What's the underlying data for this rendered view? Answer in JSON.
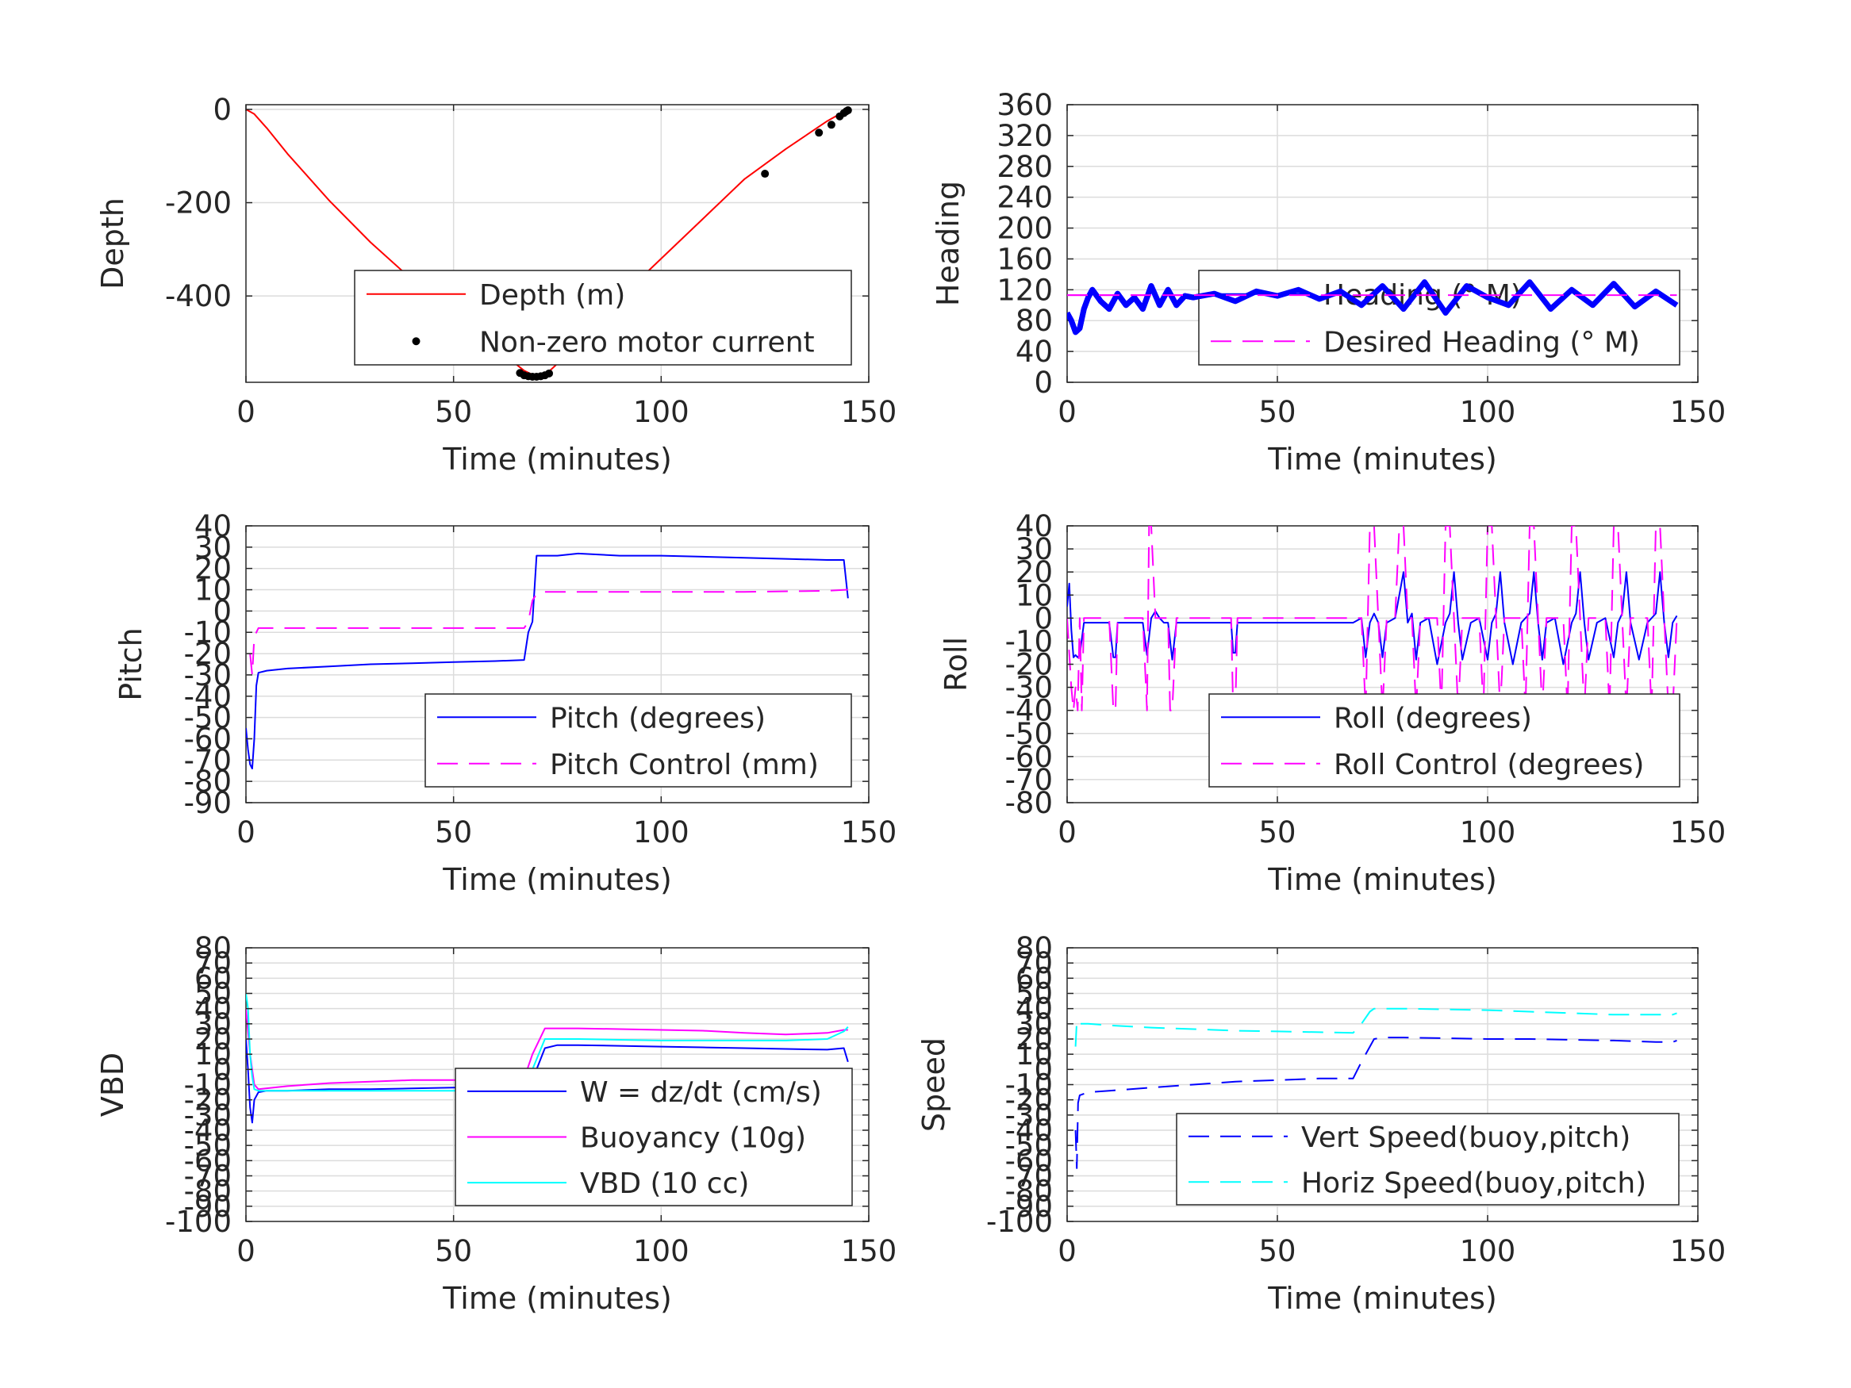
{
  "chart_data": [
    {
      "id": "depth",
      "type": "line",
      "xlabel": "Time (minutes)",
      "ylabel": "Depth",
      "xlim": [
        0,
        150
      ],
      "ylim": [
        -585,
        10
      ],
      "xticks": [
        0,
        50,
        100,
        150
      ],
      "yticks": [
        0,
        -200,
        -400
      ],
      "legend": "lower-right",
      "grid": true,
      "series": [
        {
          "name": "Depth (m)",
          "color": "#ff0000",
          "style": "solid",
          "width": 2,
          "x": [
            0,
            2,
            5,
            10,
            20,
            30,
            40,
            50,
            60,
            67,
            70,
            72,
            75,
            80,
            90,
            100,
            110,
            120,
            130,
            140,
            145
          ],
          "y": [
            0,
            -10,
            -40,
            -95,
            -195,
            -285,
            -365,
            -440,
            -510,
            -560,
            -573,
            -570,
            -545,
            -500,
            -405,
            -320,
            -235,
            -150,
            -85,
            -25,
            0
          ]
        },
        {
          "name": "Non-zero motor current",
          "color": "#000000",
          "style": "dots",
          "x": [
            66,
            67,
            68,
            69,
            70,
            71,
            72,
            73,
            125,
            138,
            141,
            143,
            144,
            144.6,
            145
          ],
          "y": [
            -565,
            -570,
            -572,
            -573,
            -573,
            -572,
            -570,
            -566,
            -138,
            -50,
            -33,
            -15,
            -8,
            -4,
            -2
          ]
        }
      ]
    },
    {
      "id": "heading",
      "type": "line",
      "xlabel": "Time (minutes)",
      "ylabel": "Heading",
      "xlim": [
        0,
        150
      ],
      "ylim": [
        0,
        360
      ],
      "xticks": [
        0,
        50,
        100,
        150
      ],
      "yticks": [
        0,
        40,
        80,
        120,
        160,
        200,
        240,
        280,
        320,
        360
      ],
      "legend": "lower-right",
      "grid": true,
      "series": [
        {
          "name": "Heading (° M)",
          "color": "#0000ff",
          "style": "thick",
          "width": 7,
          "x": [
            0,
            1,
            2,
            3,
            4,
            5,
            6,
            8,
            10,
            12,
            14,
            16,
            18,
            20,
            22,
            24,
            26,
            28,
            30,
            35,
            40,
            45,
            50,
            55,
            60,
            65,
            70,
            75,
            80,
            85,
            90,
            95,
            100,
            105,
            110,
            115,
            120,
            125,
            130,
            135,
            140,
            145
          ],
          "y": [
            90,
            80,
            65,
            70,
            95,
            110,
            120,
            105,
            95,
            115,
            100,
            110,
            95,
            125,
            100,
            120,
            100,
            112,
            110,
            115,
            105,
            118,
            112,
            120,
            108,
            118,
            100,
            125,
            95,
            130,
            90,
            125,
            110,
            100,
            130,
            95,
            120,
            100,
            128,
            98,
            118,
            100
          ]
        },
        {
          "name": "Desired Heading (° M)",
          "color": "#ff00ff",
          "style": "dashed",
          "width": 2,
          "x": [
            0,
            145
          ],
          "y": [
            113,
            113
          ]
        }
      ]
    },
    {
      "id": "pitch",
      "type": "line",
      "xlabel": "Time (minutes)",
      "ylabel": "Pitch",
      "xlim": [
        0,
        150
      ],
      "ylim": [
        -90,
        40
      ],
      "xticks": [
        0,
        50,
        100,
        150
      ],
      "yticks": [
        40,
        30,
        20,
        10,
        0,
        -10,
        -20,
        -30,
        -40,
        -50,
        -60,
        -70,
        -80,
        -90
      ],
      "legend": "lower-right",
      "grid": true,
      "series": [
        {
          "name": "Pitch (degrees)",
          "color": "#0000ff",
          "style": "solid",
          "width": 2,
          "x": [
            0,
            0.5,
            1,
            1.5,
            2,
            2.5,
            3,
            5,
            10,
            20,
            30,
            40,
            50,
            60,
            67,
            68,
            69,
            70,
            71,
            75,
            80,
            90,
            100,
            110,
            120,
            130,
            140,
            144,
            145
          ],
          "y": [
            -55,
            -65,
            -72,
            -74,
            -60,
            -35,
            -29,
            -28,
            -27,
            -26,
            -25,
            -24.5,
            -24,
            -23.5,
            -23,
            -10,
            -5,
            26,
            26,
            26,
            27,
            26,
            26,
            25.5,
            25,
            24.5,
            24,
            24,
            6
          ]
        },
        {
          "name": "Pitch Control (mm)",
          "color": "#ff00ff",
          "style": "dashed",
          "width": 2,
          "x": [
            1,
            1.5,
            2,
            3,
            10,
            30,
            50,
            67,
            68,
            69,
            70,
            71,
            80,
            100,
            120,
            140,
            145
          ],
          "y": [
            -20,
            -30,
            -12,
            -8,
            -8,
            -8,
            -8,
            -8,
            -5,
            5,
            8,
            9,
            9,
            9,
            9,
            9.5,
            10
          ]
        }
      ]
    },
    {
      "id": "roll",
      "type": "line",
      "xlabel": "",
      "ylabel": "Roll",
      "xlim": [
        0,
        150
      ],
      "ylim": [
        -80,
        40
      ],
      "xticks": [
        0,
        50,
        100,
        150
      ],
      "yticks": [
        40,
        30,
        20,
        10,
        0,
        -10,
        -20,
        -30,
        -40,
        -50,
        -60,
        -70,
        -80
      ],
      "legend": "lower-right",
      "grid": true,
      "series": [
        {
          "name": "Roll (degrees)",
          "color": "#0000ff",
          "style": "solid",
          "width": 2,
          "x": [
            0,
            0.5,
            1,
            1.5,
            2,
            2.5,
            3,
            4,
            5,
            10,
            11,
            11.5,
            12,
            18,
            19,
            20,
            21,
            22,
            23,
            24,
            25,
            26,
            30,
            39,
            39.5,
            40,
            40.5,
            50,
            60,
            68,
            70,
            71,
            72,
            73,
            74,
            75,
            76,
            78,
            80,
            81,
            82,
            83,
            84,
            86,
            88,
            90,
            91,
            92,
            93,
            94,
            96,
            98,
            100,
            101,
            102,
            103,
            104,
            106,
            108,
            110,
            111,
            112,
            113,
            114,
            116,
            118,
            120,
            121,
            122,
            123,
            124,
            126,
            128,
            130,
            131,
            132,
            133,
            134,
            136,
            138,
            140,
            141,
            142,
            143,
            144,
            145
          ],
          "y": [
            5,
            15,
            -5,
            -17,
            -16,
            -17,
            -16,
            -2,
            -2,
            -2,
            -17,
            -17,
            -2,
            -2,
            -16,
            0,
            3,
            0,
            -2,
            -2,
            -18,
            -2,
            -2,
            -2,
            -15,
            -15,
            -2,
            -2,
            -2,
            -2,
            0,
            -17,
            -2,
            2,
            -2,
            -17,
            -2,
            0,
            20,
            -2,
            2,
            -18,
            -2,
            0,
            -20,
            -2,
            2,
            20,
            -2,
            -18,
            -2,
            0,
            -18,
            -2,
            2,
            20,
            -2,
            -20,
            -2,
            2,
            20,
            -2,
            -18,
            -2,
            0,
            -20,
            -2,
            2,
            20,
            -2,
            -18,
            -2,
            0,
            -17,
            -2,
            2,
            20,
            -2,
            -18,
            -2,
            2,
            20,
            -2,
            -17,
            -2,
            1
          ]
        },
        {
          "name": "Roll Control (degrees)",
          "color": "#ff00ff",
          "style": "dashed",
          "width": 2,
          "x": [
            0,
            1,
            1.5,
            2,
            2.5,
            3,
            3.5,
            4,
            5,
            10,
            11,
            11.5,
            12,
            18,
            19,
            19.5,
            20,
            21,
            22,
            24,
            24.5,
            25,
            26,
            30,
            39,
            39.5,
            40,
            40.5,
            50,
            60,
            70,
            71,
            72,
            73,
            74,
            75,
            76,
            78,
            79,
            80,
            81,
            82,
            83,
            84,
            86,
            88,
            89,
            90,
            91,
            92,
            93,
            94,
            96,
            98,
            99,
            100,
            101,
            102,
            103,
            104,
            106,
            108,
            109,
            110,
            111,
            112,
            113,
            114,
            116,
            118,
            119,
            120,
            121,
            122,
            123,
            124,
            126,
            128,
            129,
            130,
            131,
            132,
            133,
            134,
            136,
            138,
            139,
            140,
            141,
            142,
            143,
            144,
            145
          ],
          "y": [
            0,
            -30,
            -40,
            -30,
            -40,
            0,
            -40,
            0,
            0,
            0,
            -40,
            -40,
            0,
            0,
            -40,
            40,
            40,
            0,
            0,
            0,
            -40,
            -40,
            0,
            0,
            0,
            -40,
            -40,
            0,
            0,
            0,
            0,
            -40,
            40,
            40,
            0,
            -40,
            0,
            0,
            40,
            40,
            0,
            0,
            -40,
            0,
            0,
            0,
            -40,
            40,
            40,
            0,
            -40,
            0,
            0,
            0,
            -40,
            40,
            40,
            0,
            -40,
            0,
            0,
            0,
            -40,
            40,
            40,
            0,
            -40,
            0,
            0,
            0,
            -40,
            40,
            40,
            0,
            -40,
            0,
            0,
            0,
            -40,
            40,
            40,
            0,
            -40,
            0,
            0,
            0,
            -40,
            40,
            40,
            0,
            -40,
            -40,
            0
          ]
        }
      ]
    },
    {
      "id": "vbd",
      "type": "line",
      "xlabel": "Time (minutes)",
      "ylabel": "VBD",
      "xlim": [
        0,
        150
      ],
      "ylim": [
        -100,
        80
      ],
      "xticks": [
        0,
        50,
        100,
        150
      ],
      "yticks": [
        80,
        70,
        60,
        50,
        40,
        30,
        20,
        10,
        0,
        -10,
        -20,
        -30,
        -40,
        -50,
        -60,
        -70,
        -80,
        -90,
        -100
      ],
      "legend": "lower-right",
      "grid": true,
      "series": [
        {
          "name": "W = dz/dt (cm/s)",
          "color": "#0000ff",
          "style": "solid",
          "width": 2,
          "x": [
            0,
            0.5,
            1,
            1.5,
            2,
            3,
            5,
            10,
            20,
            30,
            40,
            50,
            60,
            67,
            70,
            72,
            75,
            80,
            90,
            100,
            110,
            120,
            130,
            140,
            144,
            145
          ],
          "y": [
            20,
            0,
            -25,
            -35,
            -20,
            -15,
            -14,
            -14,
            -13,
            -13,
            -12.5,
            -12,
            -12,
            -12,
            0,
            14,
            16,
            16,
            15.5,
            15,
            14.5,
            14,
            13.5,
            13,
            14,
            5
          ]
        },
        {
          "name": "Buoyancy (10g)",
          "color": "#ff00ff",
          "style": "solid",
          "width": 2,
          "x": [
            0,
            1,
            2,
            3,
            10,
            20,
            30,
            40,
            50,
            60,
            67,
            69,
            72,
            75,
            80,
            90,
            100,
            110,
            120,
            130,
            140,
            144,
            145
          ],
          "y": [
            40,
            10,
            -10,
            -13,
            -11,
            -9,
            -8,
            -7,
            -7,
            -7,
            -6,
            10,
            27,
            27,
            27,
            26.5,
            26,
            25.5,
            24,
            23,
            24,
            26,
            26
          ]
        },
        {
          "name": "VBD (10 cc)",
          "color": "#00ffff",
          "style": "solid",
          "width": 2,
          "x": [
            0,
            0.5,
            1,
            1.5,
            2,
            3,
            10,
            20,
            30,
            40,
            50,
            60,
            67,
            69,
            72,
            75,
            80,
            90,
            100,
            110,
            120,
            130,
            140,
            144,
            145
          ],
          "y": [
            50,
            40,
            10,
            -5,
            -13,
            -14,
            -14,
            -14,
            -14,
            -14,
            -14,
            -14,
            -14,
            0,
            20,
            20,
            20,
            19.5,
            19,
            19,
            19,
            19,
            20,
            25,
            28
          ]
        }
      ]
    },
    {
      "id": "speed",
      "type": "line",
      "xlabel": "Time (minutes)",
      "ylabel": "Speed",
      "xlim": [
        0,
        150
      ],
      "ylim": [
        -100,
        80
      ],
      "xticks": [
        0,
        50,
        100,
        150
      ],
      "yticks": [
        80,
        70,
        60,
        50,
        40,
        30,
        20,
        10,
        0,
        -10,
        -20,
        -30,
        -40,
        -50,
        -60,
        -70,
        -80,
        -90,
        -100
      ],
      "legend": "lower-right",
      "grid": true,
      "series": [
        {
          "name": "Vert Speed(buoy,pitch)",
          "color": "#0000ff",
          "style": "dashed",
          "width": 2,
          "x": [
            2,
            2.3,
            2.6,
            3,
            5,
            10,
            20,
            30,
            40,
            50,
            60,
            68,
            70,
            72,
            73,
            75,
            80,
            90,
            100,
            110,
            120,
            130,
            140,
            144,
            145
          ],
          "y": [
            -40,
            -65,
            -22,
            -17,
            -15,
            -14,
            -12,
            -10,
            -8,
            -7,
            -6,
            -6,
            5,
            15,
            20,
            21,
            21,
            20.5,
            20,
            20,
            19.5,
            19,
            18,
            18,
            19
          ]
        },
        {
          "name": "Horiz Speed(buoy,pitch)",
          "color": "#00ffff",
          "style": "dashed",
          "width": 2,
          "x": [
            2,
            2.3,
            2.6,
            3,
            5,
            10,
            20,
            30,
            40,
            50,
            60,
            68,
            70,
            72,
            73,
            75,
            80,
            90,
            100,
            110,
            120,
            130,
            140,
            144,
            145
          ],
          "y": [
            15,
            32,
            30,
            30,
            30,
            29,
            27.5,
            26.5,
            25.5,
            25,
            24.5,
            24,
            30,
            38,
            40,
            40,
            40,
            39.5,
            39,
            38,
            37,
            36,
            36,
            36,
            37
          ]
        }
      ]
    }
  ]
}
